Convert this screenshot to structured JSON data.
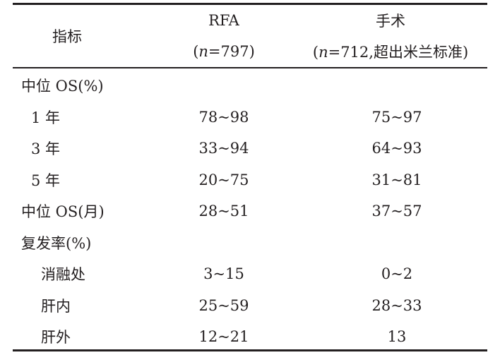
{
  "header": {
    "col1": "指标",
    "col2_line1": "RFA",
    "col2_line2_open": "(",
    "col2_line2_n": "n",
    "col2_line2_rest": "=797)",
    "col3_line1": "手术",
    "col3_line2_open": "(",
    "col3_line2_n": "n",
    "col3_line2_rest": "=712,超出米兰标准)"
  },
  "rows": [
    {
      "label": "中位 OS(%)",
      "rfa": "",
      "surgery": ""
    },
    {
      "label": "1 年",
      "rfa": "78~98",
      "surgery": "75~97"
    },
    {
      "label": "3 年",
      "rfa": "33~94",
      "surgery": "64~93"
    },
    {
      "label": "5 年",
      "rfa": "20~75",
      "surgery": "31~81"
    },
    {
      "label": "中位 OS(月)",
      "rfa": "28~51",
      "surgery": "37~57"
    },
    {
      "label": "复发率(%)",
      "rfa": "",
      "surgery": ""
    },
    {
      "label": "消融处",
      "rfa": "3~15",
      "surgery": "0~2"
    },
    {
      "label": "肝内",
      "rfa": "25~59",
      "surgery": "28~33"
    },
    {
      "label": "肝外",
      "rfa": "12~21",
      "surgery": "13"
    }
  ]
}
